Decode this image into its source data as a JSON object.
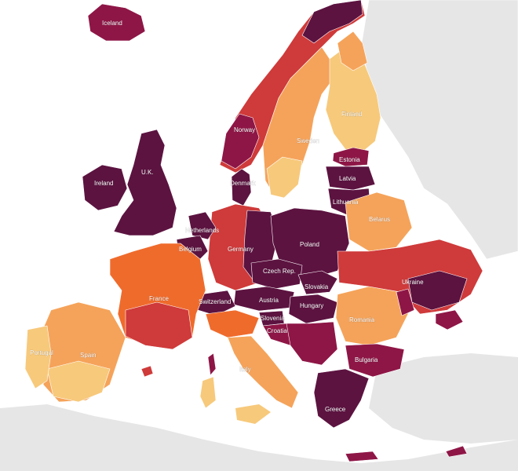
{
  "palette": {
    "background": "#ffffff",
    "non_europe_land": "#e6e6e6",
    "very_high": "#5c1340",
    "high": "#8e1646",
    "elevated": "#cf3a3a",
    "moderate": "#ef6b2c",
    "lower": "#f5a35a",
    "lowest": "#f7c97b"
  },
  "labels": {
    "iceland": "Iceland",
    "norway": "Norway",
    "sweden": "Sweden",
    "finland": "Finland",
    "estonia": "Estonia",
    "latvia": "Latvia",
    "lithuania": "Lithuania",
    "denmark": "Denmark",
    "uk": "U.K.",
    "ireland": "Ireland",
    "netherlands": "Netherlands",
    "belgium": "Belgium",
    "germany": "Germany",
    "poland": "Poland",
    "belarus": "Belarus",
    "czech": "Czech Rep.",
    "slovakia": "Slovakia",
    "ukraine": "Ukraine",
    "france": "France",
    "switzerland": "Switzerland",
    "austria": "Austria",
    "hungary": "Hungary",
    "slovenia": "Slovenia",
    "croatia": "Croatia",
    "romania": "Romania",
    "portugal": "Portugal",
    "spain": "Spain",
    "italy": "Italy",
    "bulgaria": "Bulgaria",
    "greece": "Greece"
  }
}
